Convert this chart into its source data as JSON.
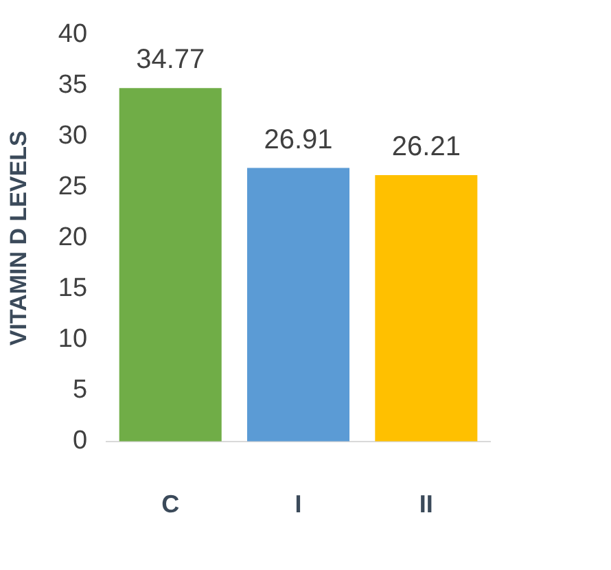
{
  "chart_data": {
    "type": "bar",
    "ylabel": "VITAMIN D LEVELS",
    "categories": [
      "C",
      "I",
      "II"
    ],
    "values": [
      34.77,
      26.91,
      26.21
    ],
    "colors": [
      "#70ad47",
      "#5b9bd5",
      "#ffc000"
    ],
    "ylim": [
      0,
      40
    ],
    "yticks": [
      0,
      5,
      10,
      15,
      20,
      25,
      30,
      35,
      40
    ],
    "data_labels": true,
    "grid": false,
    "legend": false
  }
}
